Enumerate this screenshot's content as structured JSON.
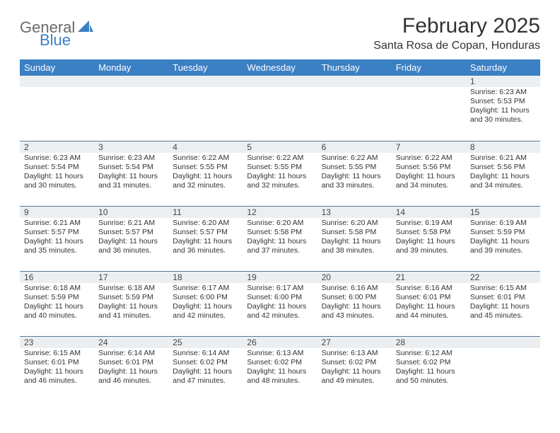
{
  "logo": {
    "word1": "General",
    "word2": "Blue",
    "shape_color": "#3b7fc4"
  },
  "header": {
    "month_title": "February 2025",
    "location": "Santa Rosa de Copan, Honduras"
  },
  "colors": {
    "header_bg": "#3b7fc4",
    "header_fg": "#ffffff",
    "band_bg": "#eceff1",
    "rule": "#5a7a9a"
  },
  "dayNames": [
    "Sunday",
    "Monday",
    "Tuesday",
    "Wednesday",
    "Thursday",
    "Friday",
    "Saturday"
  ],
  "weeks": [
    [
      null,
      null,
      null,
      null,
      null,
      null,
      {
        "n": "1",
        "sunrise": "Sunrise: 6:23 AM",
        "sunset": "Sunset: 5:53 PM",
        "daylight": "Daylight: 11 hours and 30 minutes."
      }
    ],
    [
      {
        "n": "2",
        "sunrise": "Sunrise: 6:23 AM",
        "sunset": "Sunset: 5:54 PM",
        "daylight": "Daylight: 11 hours and 30 minutes."
      },
      {
        "n": "3",
        "sunrise": "Sunrise: 6:23 AM",
        "sunset": "Sunset: 5:54 PM",
        "daylight": "Daylight: 11 hours and 31 minutes."
      },
      {
        "n": "4",
        "sunrise": "Sunrise: 6:22 AM",
        "sunset": "Sunset: 5:55 PM",
        "daylight": "Daylight: 11 hours and 32 minutes."
      },
      {
        "n": "5",
        "sunrise": "Sunrise: 6:22 AM",
        "sunset": "Sunset: 5:55 PM",
        "daylight": "Daylight: 11 hours and 32 minutes."
      },
      {
        "n": "6",
        "sunrise": "Sunrise: 6:22 AM",
        "sunset": "Sunset: 5:55 PM",
        "daylight": "Daylight: 11 hours and 33 minutes."
      },
      {
        "n": "7",
        "sunrise": "Sunrise: 6:22 AM",
        "sunset": "Sunset: 5:56 PM",
        "daylight": "Daylight: 11 hours and 34 minutes."
      },
      {
        "n": "8",
        "sunrise": "Sunrise: 6:21 AM",
        "sunset": "Sunset: 5:56 PM",
        "daylight": "Daylight: 11 hours and 34 minutes."
      }
    ],
    [
      {
        "n": "9",
        "sunrise": "Sunrise: 6:21 AM",
        "sunset": "Sunset: 5:57 PM",
        "daylight": "Daylight: 11 hours and 35 minutes."
      },
      {
        "n": "10",
        "sunrise": "Sunrise: 6:21 AM",
        "sunset": "Sunset: 5:57 PM",
        "daylight": "Daylight: 11 hours and 36 minutes."
      },
      {
        "n": "11",
        "sunrise": "Sunrise: 6:20 AM",
        "sunset": "Sunset: 5:57 PM",
        "daylight": "Daylight: 11 hours and 36 minutes."
      },
      {
        "n": "12",
        "sunrise": "Sunrise: 6:20 AM",
        "sunset": "Sunset: 5:58 PM",
        "daylight": "Daylight: 11 hours and 37 minutes."
      },
      {
        "n": "13",
        "sunrise": "Sunrise: 6:20 AM",
        "sunset": "Sunset: 5:58 PM",
        "daylight": "Daylight: 11 hours and 38 minutes."
      },
      {
        "n": "14",
        "sunrise": "Sunrise: 6:19 AM",
        "sunset": "Sunset: 5:58 PM",
        "daylight": "Daylight: 11 hours and 39 minutes."
      },
      {
        "n": "15",
        "sunrise": "Sunrise: 6:19 AM",
        "sunset": "Sunset: 5:59 PM",
        "daylight": "Daylight: 11 hours and 39 minutes."
      }
    ],
    [
      {
        "n": "16",
        "sunrise": "Sunrise: 6:18 AM",
        "sunset": "Sunset: 5:59 PM",
        "daylight": "Daylight: 11 hours and 40 minutes."
      },
      {
        "n": "17",
        "sunrise": "Sunrise: 6:18 AM",
        "sunset": "Sunset: 5:59 PM",
        "daylight": "Daylight: 11 hours and 41 minutes."
      },
      {
        "n": "18",
        "sunrise": "Sunrise: 6:17 AM",
        "sunset": "Sunset: 6:00 PM",
        "daylight": "Daylight: 11 hours and 42 minutes."
      },
      {
        "n": "19",
        "sunrise": "Sunrise: 6:17 AM",
        "sunset": "Sunset: 6:00 PM",
        "daylight": "Daylight: 11 hours and 42 minutes."
      },
      {
        "n": "20",
        "sunrise": "Sunrise: 6:16 AM",
        "sunset": "Sunset: 6:00 PM",
        "daylight": "Daylight: 11 hours and 43 minutes."
      },
      {
        "n": "21",
        "sunrise": "Sunrise: 6:16 AM",
        "sunset": "Sunset: 6:01 PM",
        "daylight": "Daylight: 11 hours and 44 minutes."
      },
      {
        "n": "22",
        "sunrise": "Sunrise: 6:15 AM",
        "sunset": "Sunset: 6:01 PM",
        "daylight": "Daylight: 11 hours and 45 minutes."
      }
    ],
    [
      {
        "n": "23",
        "sunrise": "Sunrise: 6:15 AM",
        "sunset": "Sunset: 6:01 PM",
        "daylight": "Daylight: 11 hours and 46 minutes."
      },
      {
        "n": "24",
        "sunrise": "Sunrise: 6:14 AM",
        "sunset": "Sunset: 6:01 PM",
        "daylight": "Daylight: 11 hours and 46 minutes."
      },
      {
        "n": "25",
        "sunrise": "Sunrise: 6:14 AM",
        "sunset": "Sunset: 6:02 PM",
        "daylight": "Daylight: 11 hours and 47 minutes."
      },
      {
        "n": "26",
        "sunrise": "Sunrise: 6:13 AM",
        "sunset": "Sunset: 6:02 PM",
        "daylight": "Daylight: 11 hours and 48 minutes."
      },
      {
        "n": "27",
        "sunrise": "Sunrise: 6:13 AM",
        "sunset": "Sunset: 6:02 PM",
        "daylight": "Daylight: 11 hours and 49 minutes."
      },
      {
        "n": "28",
        "sunrise": "Sunrise: 6:12 AM",
        "sunset": "Sunset: 6:02 PM",
        "daylight": "Daylight: 11 hours and 50 minutes."
      },
      null
    ]
  ]
}
